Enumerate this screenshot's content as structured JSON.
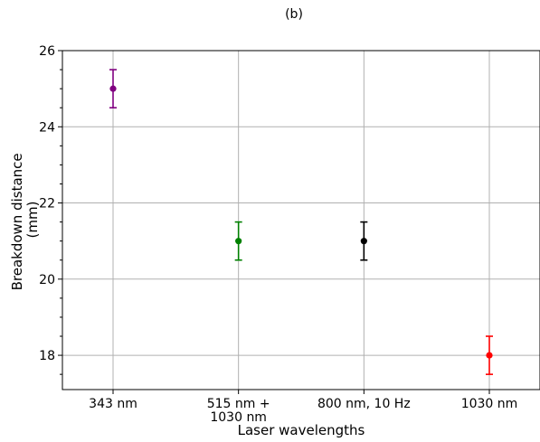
{
  "chart_data": {
    "type": "scatter",
    "title": "(b)",
    "xlabel": "Laser wavelengths",
    "ylabel_lines": [
      "Breakdown distance",
      "(mm)"
    ],
    "ylim": [
      17.1,
      26
    ],
    "yticks": [
      18,
      20,
      22,
      24,
      26
    ],
    "yticks_minor": [
      17.5,
      18.5,
      19,
      19.5,
      20.5,
      21,
      21.5,
      22.5,
      23,
      23.5,
      24.5,
      25,
      25.5
    ],
    "grid": true,
    "categories": [
      [
        "343 nm"
      ],
      [
        "515 nm +",
        "1030 nm"
      ],
      [
        "800 nm, 10 Hz"
      ],
      [
        "1030 nm"
      ]
    ],
    "points": [
      {
        "value": 25,
        "error": 0.5,
        "color": "#800080"
      },
      {
        "value": 21,
        "error": 0.5,
        "color": "#008000"
      },
      {
        "value": 21,
        "error": 0.5,
        "color": "#000000"
      },
      {
        "value": 18,
        "error": 0.5,
        "color": "#ff0000"
      }
    ]
  }
}
